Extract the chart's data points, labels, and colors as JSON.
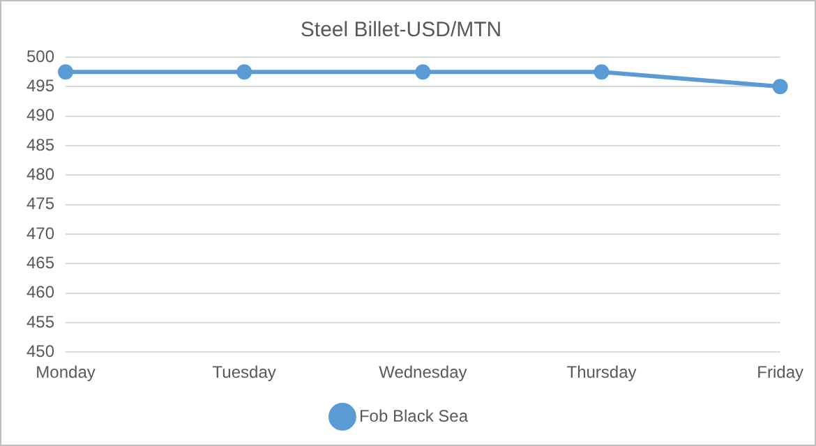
{
  "chart_data": {
    "type": "line",
    "title": "Steel Billet-USD/MTN",
    "categories": [
      "Monday",
      "Tuesday",
      "Wednesday",
      "Thursday",
      "Friday"
    ],
    "series": [
      {
        "name": "Fob Black Sea",
        "color": "#5b9bd5",
        "values": [
          497.5,
          497.5,
          497.5,
          497.5,
          495
        ]
      }
    ],
    "ylim": [
      450,
      500
    ],
    "yticks": [
      450,
      455,
      460,
      465,
      470,
      475,
      480,
      485,
      490,
      495,
      500
    ],
    "grid": "y",
    "legend": "bottom",
    "marker": "circle",
    "line_style": "solid"
  }
}
